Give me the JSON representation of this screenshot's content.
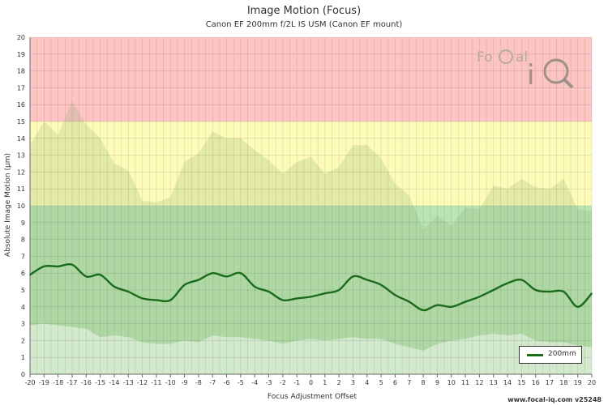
{
  "footer": "www.focal-iq.com  v25248",
  "logo": {
    "text_a": "Fo",
    "text_b": "Cal",
    "text_c": "iQ"
  },
  "chart_data": {
    "type": "line",
    "title": "Image Motion (Focus)",
    "subtitle": "Canon EF 200mm f/2L IS USM (Canon EF mount)",
    "xlabel": "Focus Adjustment Offset",
    "ylabel": "Absolute Image Motion (μm)",
    "xlim": [
      -20,
      20
    ],
    "ylim": [
      0,
      20
    ],
    "grid": true,
    "legend_position": "bottom-right",
    "zones": [
      {
        "from": 0,
        "to": 10,
        "color": "#b9e4b4"
      },
      {
        "from": 10,
        "to": 15,
        "color": "#fcfbb7"
      },
      {
        "from": 15,
        "to": 20,
        "color": "#fcc4c2"
      }
    ],
    "series": [
      {
        "name": "200mm",
        "color": "#1a6b1a",
        "x": [
          -20,
          -19,
          -18,
          -17,
          -16,
          -15,
          -14,
          -13,
          -12,
          -11,
          -10,
          -9,
          -8,
          -7,
          -6,
          -5,
          -4,
          -3,
          -2,
          -1,
          0,
          1,
          2,
          3,
          4,
          5,
          6,
          7,
          8,
          9,
          10,
          11,
          12,
          13,
          14,
          15,
          16,
          17,
          18,
          19,
          20
        ],
        "values": [
          5.9,
          6.4,
          6.4,
          6.5,
          5.8,
          5.9,
          5.2,
          4.9,
          4.5,
          4.4,
          4.4,
          5.3,
          5.6,
          6.0,
          5.8,
          6.0,
          5.2,
          4.9,
          4.4,
          4.5,
          4.6,
          4.8,
          5.0,
          5.8,
          5.6,
          5.3,
          4.7,
          4.3,
          3.8,
          4.1,
          4.0,
          4.3,
          4.6,
          5.0,
          5.4,
          5.6,
          5.0,
          4.9,
          4.9,
          4.0,
          4.8
        ]
      }
    ],
    "upper_band": [
      13.6,
      15.0,
      14.2,
      16.2,
      14.8,
      14.0,
      12.5,
      12.1,
      10.3,
      10.2,
      10.5,
      12.6,
      13.1,
      14.4,
      14.0,
      14.0,
      13.3,
      12.7,
      11.9,
      12.6,
      12.9,
      11.9,
      12.3,
      13.6,
      13.6,
      12.8,
      11.3,
      10.6,
      8.6,
      9.4,
      8.8,
      9.9,
      9.8,
      11.2,
      11.0,
      11.6,
      11.1,
      11.0,
      11.6,
      9.8,
      9.7
    ],
    "lower_band": [
      2.9,
      3.0,
      2.9,
      2.8,
      2.7,
      2.2,
      2.3,
      2.2,
      1.9,
      1.8,
      1.8,
      2.0,
      1.9,
      2.3,
      2.2,
      2.2,
      2.1,
      2.0,
      1.8,
      2.0,
      2.1,
      2.0,
      2.1,
      2.2,
      2.1,
      2.1,
      1.8,
      1.6,
      1.4,
      1.8,
      2.0,
      2.1,
      2.3,
      2.4,
      2.3,
      2.4,
      2.0,
      1.9,
      1.9,
      1.7,
      1.6
    ]
  }
}
